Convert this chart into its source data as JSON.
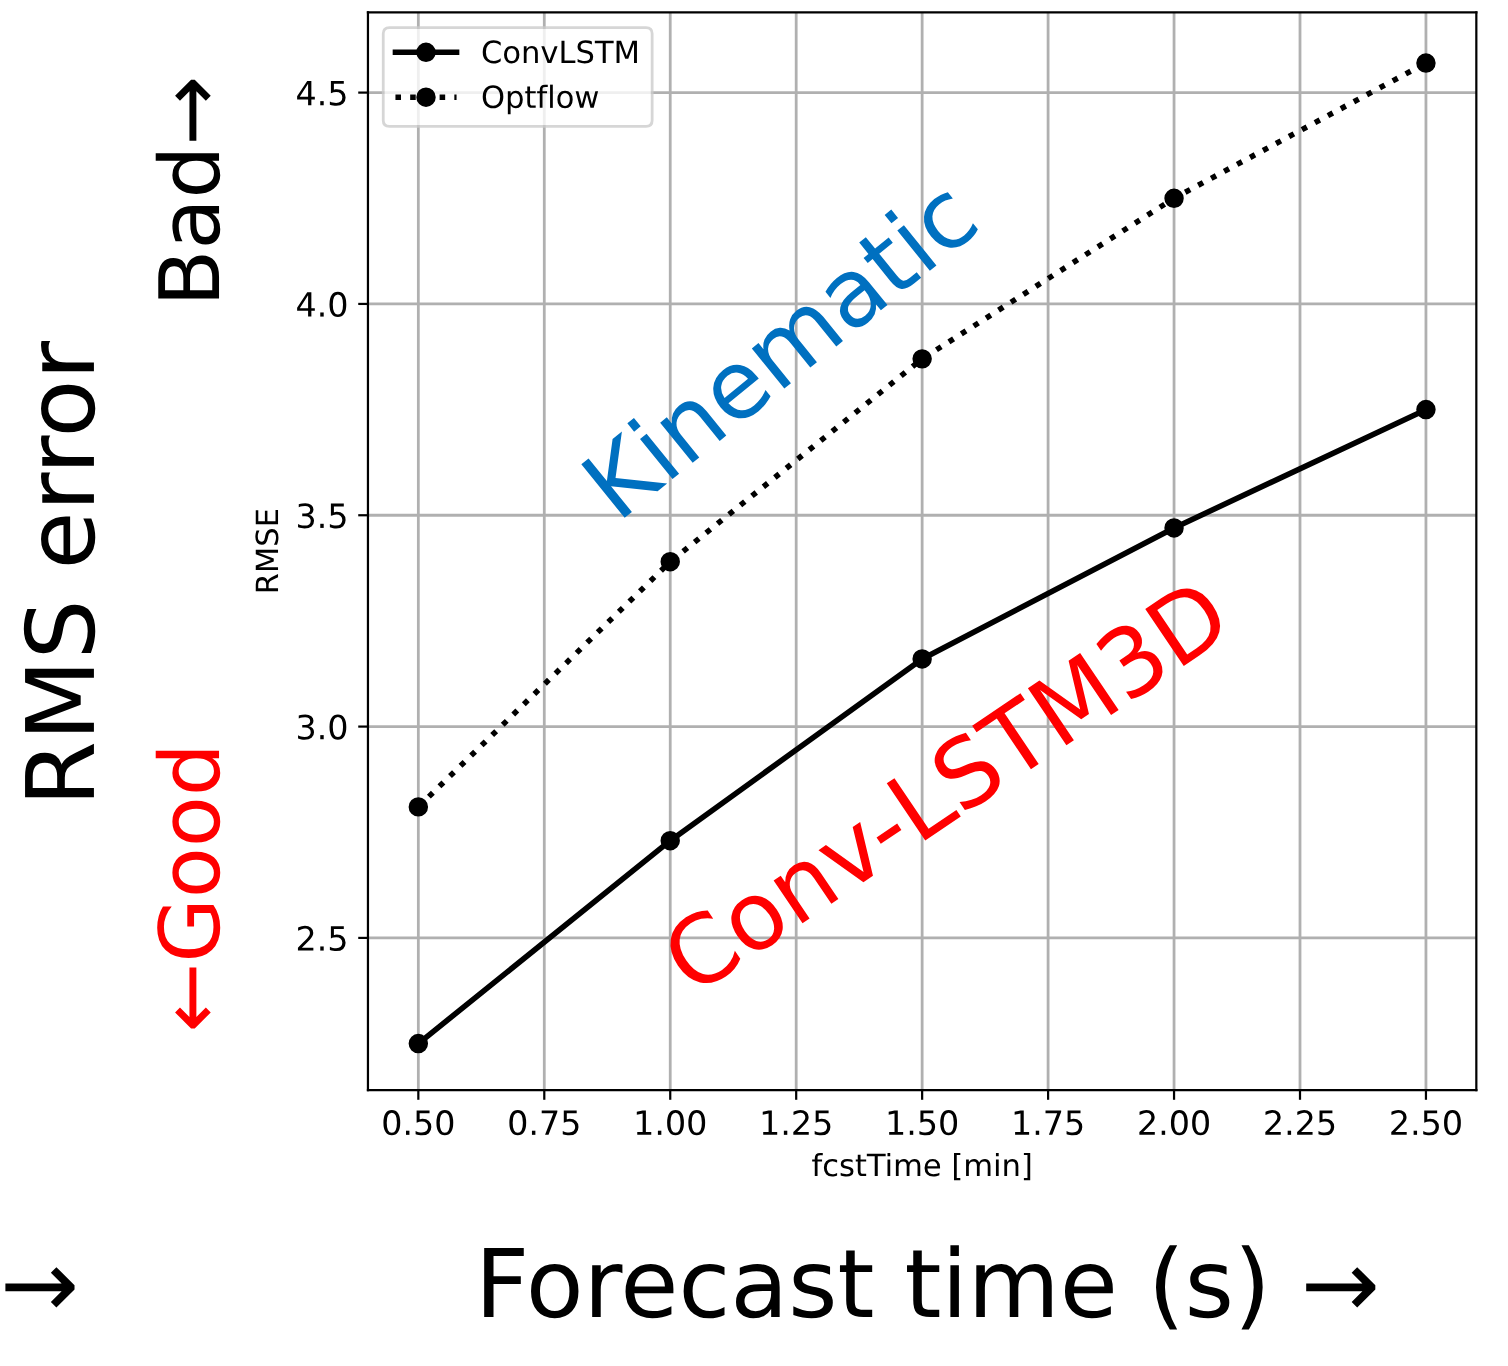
{
  "chart_data": {
    "type": "line",
    "x": [
      0.5,
      1.0,
      1.5,
      2.0,
      2.5
    ],
    "series": [
      {
        "name": "ConvLSTM",
        "color": "#000000",
        "values": [
          2.25,
          2.73,
          3.16,
          3.47,
          3.75
        ],
        "line_style": "solid"
      },
      {
        "name": "Optflow",
        "color": "#000000",
        "values": [
          2.81,
          3.39,
          3.87,
          4.25,
          4.57
        ],
        "line_style": "dotted"
      }
    ],
    "xlabel": "fcstTime [min]",
    "ylabel": "RMSE",
    "xlim": [
      0.4,
      2.6
    ],
    "xticks": [
      {
        "value": 0.5,
        "label": "0.50"
      },
      {
        "value": 0.75,
        "label": "0.75"
      },
      {
        "value": 1.0,
        "label": "1.00"
      },
      {
        "value": 1.25,
        "label": "1.25"
      },
      {
        "value": 1.5,
        "label": "1.50"
      },
      {
        "value": 1.75,
        "label": "1.75"
      },
      {
        "value": 2.0,
        "label": "2.00"
      },
      {
        "value": 2.25,
        "label": "2.25"
      },
      {
        "value": 2.5,
        "label": "2.50"
      }
    ],
    "ylim": [
      2.14,
      4.69
    ],
    "yticks": [
      2.5,
      {
        "value": 3.0,
        "label": "3.0"
      },
      3.5,
      {
        "value": 4.0,
        "label": "4.0"
      },
      4.5
    ],
    "grid": true,
    "legend": "top left",
    "marker": "circle",
    "annotations": [
      "RMS error",
      "Bad→",
      "←Good",
      "Kinematic",
      "Conv-LSTM3D",
      "Forecast time (s) →",
      "→"
    ]
  }
}
